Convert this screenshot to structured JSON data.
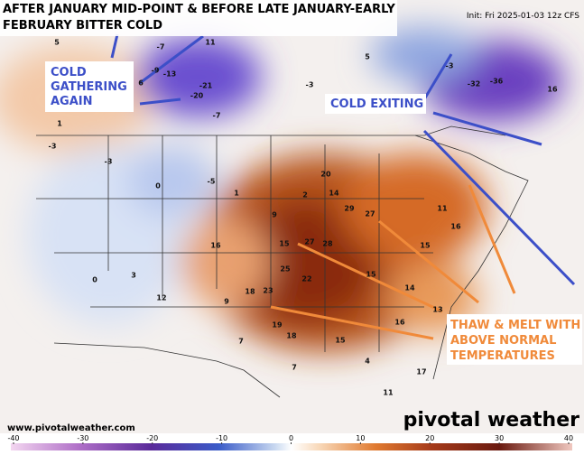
{
  "header": {
    "title_lines": [
      "AFTER JANUARY MID-POINT & BEFORE LATE JANUARY-EARLY",
      "FEBRUARY BITTER COLD"
    ],
    "init": "Init: Fri 2025-01-03 12z CFS"
  },
  "annotations": {
    "cold_gathering": [
      "COLD",
      "GATHERING",
      "AGAIN"
    ],
    "cold_exiting": "COLD EXITING",
    "thaw": [
      "THAW & MELT WITH",
      "ABOVE NORMAL",
      "TEMPERATURES"
    ]
  },
  "map_values": [
    5,
    -7,
    11,
    -13,
    -21,
    -20,
    -7,
    6,
    -9,
    -36,
    -32,
    16,
    -3,
    5,
    -3,
    1,
    -3,
    -3,
    0,
    -5,
    1,
    2,
    14,
    20,
    29,
    27,
    9,
    16,
    15,
    27,
    28,
    25,
    23,
    22,
    19,
    15,
    14,
    16,
    15,
    18,
    18,
    9,
    12,
    0,
    15,
    16,
    11,
    13,
    17,
    11,
    4,
    7,
    7,
    3
  ],
  "footer": {
    "url": "www.pivotalweather.com",
    "brand": "pivotal weather"
  },
  "colorbar": {
    "ticks": [
      -40,
      -30,
      -20,
      -10,
      0,
      10,
      20,
      30,
      40
    ]
  }
}
